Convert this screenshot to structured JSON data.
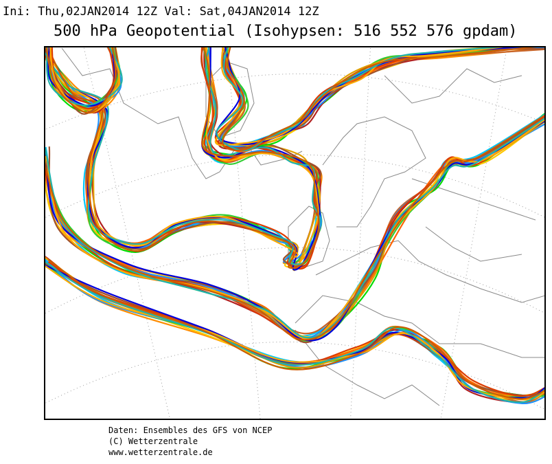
{
  "header": {
    "run_info": "Ini: Thu,02JAN2014 12Z  Val: Sat,04JAN2014 12Z",
    "title": "500 hPa Geopotential (Isohypsen: 516 552 576 gpdam)"
  },
  "footer": {
    "lines": [
      "Daten: Ensembles des GFS von NCEP",
      "(C) Wetterzentrale",
      "www.wetterzentrale.de"
    ]
  }
}
